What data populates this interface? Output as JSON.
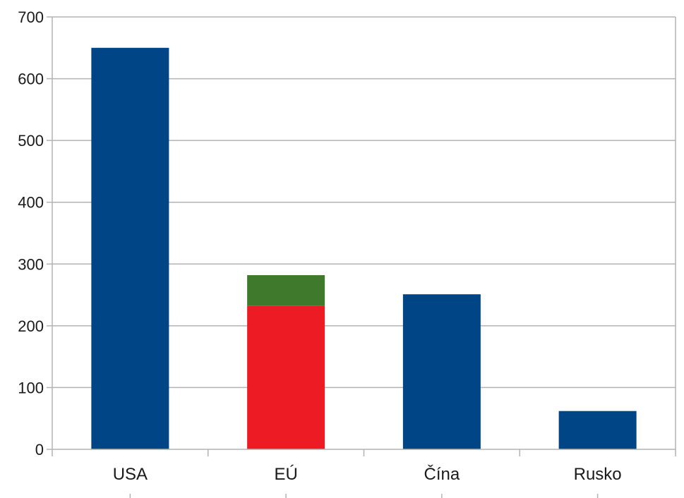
{
  "chart_data": {
    "type": "bar",
    "stacked": true,
    "title": "",
    "xlabel": "",
    "ylabel": "",
    "categories": [
      "USA",
      "EÚ",
      "Čína",
      "Rusko"
    ],
    "ylim": [
      0,
      700
    ],
    "yticks": [
      0,
      100,
      200,
      300,
      400,
      500,
      600,
      700
    ],
    "grid": true,
    "legend": "none",
    "bars": [
      {
        "category": "USA",
        "segments": [
          {
            "value": 650,
            "color": "#004586"
          }
        ]
      },
      {
        "category": "EÚ",
        "segments": [
          {
            "value": 232,
            "color": "#ed1c24"
          },
          {
            "value": 50,
            "color": "#3f7a2c"
          }
        ]
      },
      {
        "category": "Čína",
        "segments": [
          {
            "value": 251,
            "color": "#004586"
          }
        ]
      },
      {
        "category": "Rusko",
        "segments": [
          {
            "value": 62,
            "color": "#004586"
          }
        ]
      }
    ],
    "colors": {
      "axis": "#b3b3b3",
      "grid": "#b3b3b3"
    }
  }
}
